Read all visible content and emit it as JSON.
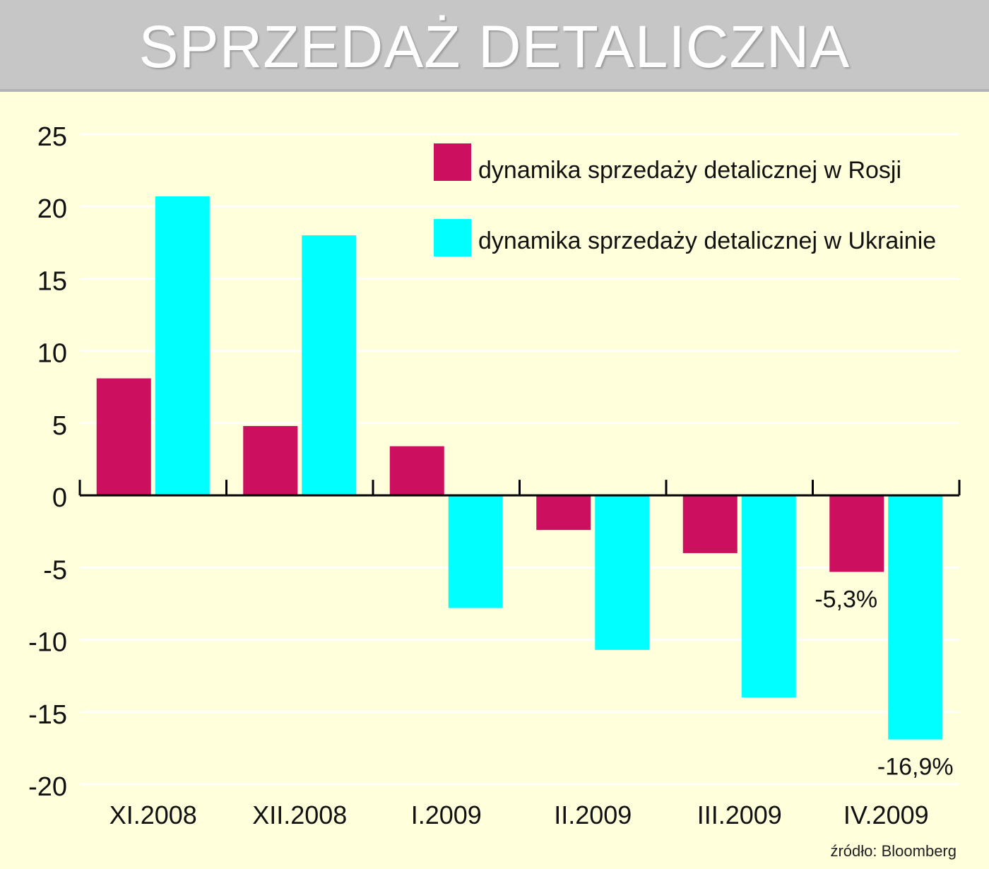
{
  "title": "SPRZEDAŻ DETALICZNA",
  "source": "źródło: Bloomberg",
  "colors": {
    "background": "#ffffdb",
    "header": "#c6c6c6",
    "russia": "#cc0f5e",
    "ukraine": "#00ffff",
    "grid": "#ffffff"
  },
  "chart_data": {
    "type": "bar",
    "title": "SPRZEDAŻ DETALICZNA",
    "categories": [
      "XI.2008",
      "XII.2008",
      "I.2009",
      "II.2009",
      "III.2009",
      "IV.2009"
    ],
    "series": [
      {
        "name": "dynamika sprzedaży detalicznej w Rosji",
        "color": "#cc0f5e",
        "values": [
          8.1,
          4.8,
          3.4,
          -2.4,
          -4.0,
          -5.3
        ]
      },
      {
        "name": "dynamika sprzedaży detalicznej w Ukrainie",
        "color": "#00ffff",
        "values": [
          20.7,
          18.0,
          -7.8,
          -10.7,
          -14.0,
          -16.9
        ]
      }
    ],
    "yticks": [
      "25",
      "20",
      "15",
      "10",
      "5",
      "0",
      "-5",
      "-10",
      "-15",
      "-20"
    ],
    "ylim": [
      -20,
      25
    ],
    "grid": true,
    "legend_position": "top-right",
    "annotations": [
      {
        "series": 0,
        "category": 5,
        "text": "-5,3%"
      },
      {
        "series": 1,
        "category": 5,
        "text": "-16,9%"
      }
    ]
  }
}
